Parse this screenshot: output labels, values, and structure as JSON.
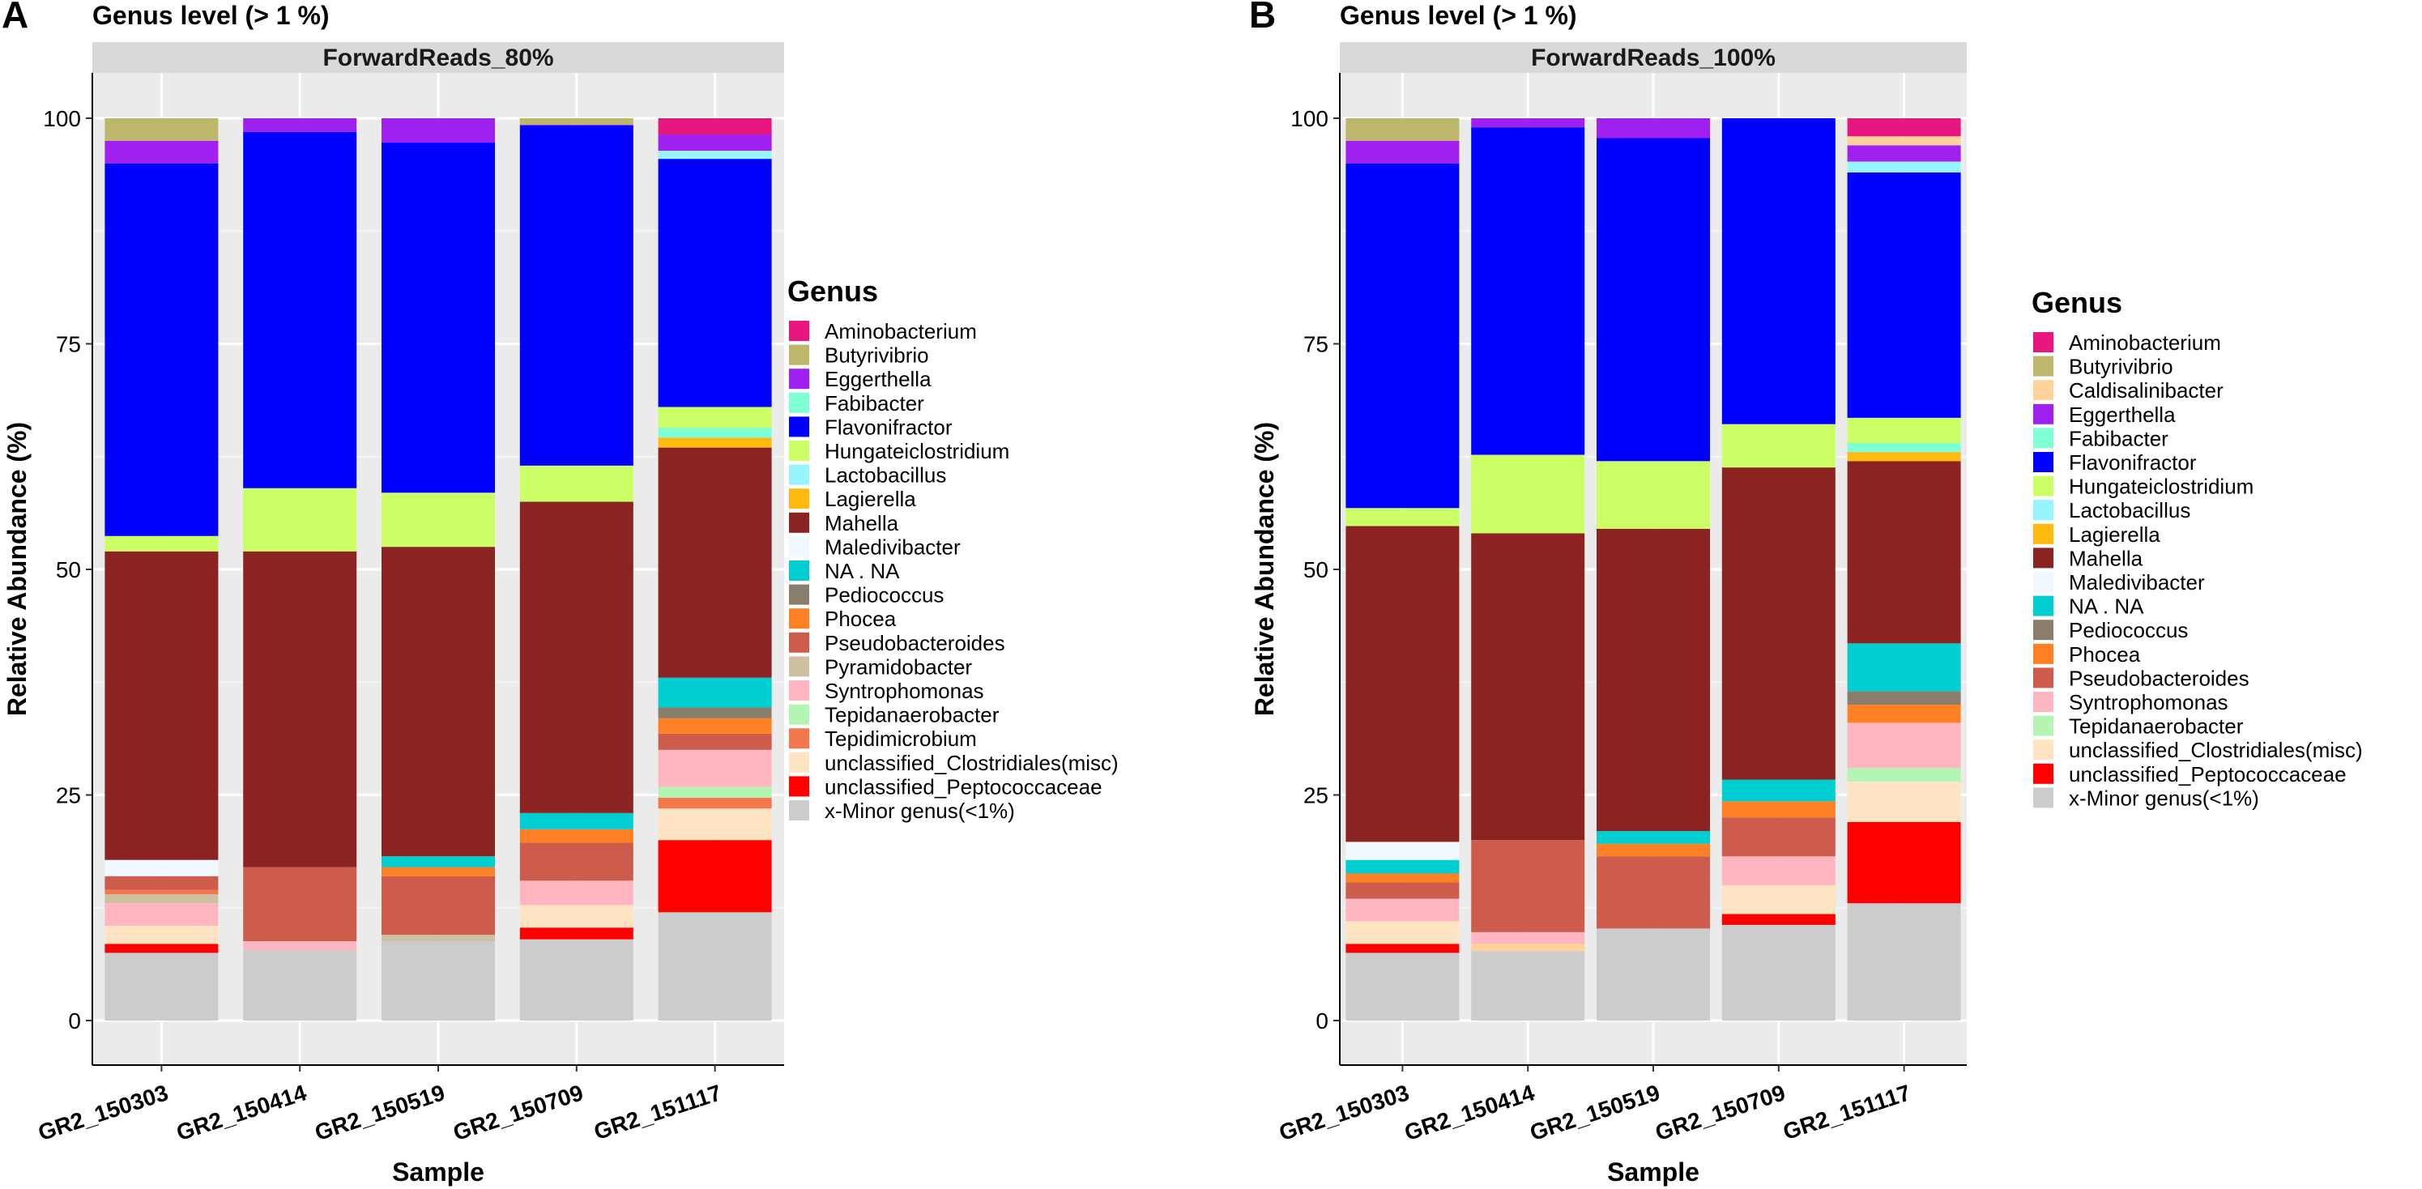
{
  "colors": {
    "Aminobacterium": "#E8177F",
    "Butyrivibrio": "#BDB76B",
    "Caldisalinibacter": "#FFD39B",
    "Eggerthella": "#A020F0",
    "Fabibacter": "#7FFFD4",
    "Flavonifractor": "#0000FF",
    "Hungateiclostridium": "#CCFF66",
    "Lactobacillus": "#98F5FF",
    "Lagierella": "#FFB90F",
    "Mahella": "#8B2323",
    "Maledivibacter": "#F0F8FF",
    "NA . NA": "#00CED1",
    "Pediococcus": "#8B7D6B",
    "Phocea": "#FF7F24",
    "Pseudobacteroides": "#CD5C4C",
    "Pyramidobacter": "#CDC0A0",
    "Syntrophomonas": "#FFB6C1",
    "Tepidanaerobacter": "#B4F5B4",
    "Tepidimicrobium": "#F4784E",
    "unclassified_Clostridiales(misc)": "#FFE4C4",
    "unclassified_Peptococcaceae": "#FF0000",
    "x-Minor genus(<1%)": "#CCCCCC"
  },
  "chart_data": [
    {
      "type": "bar",
      "stacked": true,
      "panel_letter": "A",
      "title": "Genus level (> 1 %)",
      "facet_label": "ForwardReads_80%",
      "xlabel": "Sample",
      "ylabel": "Relative Abundance (%)",
      "ylim": [
        0,
        100
      ],
      "yticks": [
        0,
        25,
        50,
        75,
        100
      ],
      "grid": true,
      "legend_title": "Genus",
      "legend_position": "right",
      "legend": [
        "Aminobacterium",
        "Butyrivibrio",
        "Eggerthella",
        "Fabibacter",
        "Flavonifractor",
        "Hungateiclostridium",
        "Lactobacillus",
        "Lagierella",
        "Mahella",
        "Maledivibacter",
        "NA . NA",
        "Pediococcus",
        "Phocea",
        "Pseudobacteroides",
        "Pyramidobacter",
        "Syntrophomonas",
        "Tepidanaerobacter",
        "Tepidimicrobium",
        "unclassified_Clostridiales(misc)",
        "unclassified_Peptococcaceae",
        "x-Minor genus(<1%)"
      ],
      "categories": [
        "GR2_150303",
        "GR2_150414",
        "GR2_150519",
        "GR2_150709",
        "GR2_151117"
      ],
      "stacks": [
        [
          {
            "genus": "x-Minor genus(<1%)",
            "value": 7.5
          },
          {
            "genus": "unclassified_Peptococcaceae",
            "value": 1
          },
          {
            "genus": "unclassified_Clostridiales(misc)",
            "value": 2
          },
          {
            "genus": "Syntrophomonas",
            "value": 2.5
          },
          {
            "genus": "Pyramidobacter",
            "value": 1
          },
          {
            "genus": "Tepidimicrobium",
            "value": 0.5
          },
          {
            "genus": "Pseudobacteroides",
            "value": 1.5
          },
          {
            "genus": "Maledivibacter",
            "value": 1.8
          },
          {
            "genus": "Mahella",
            "value": 34.2
          },
          {
            "genus": "Hungateiclostridium",
            "value": 1.7
          },
          {
            "genus": "Flavonifractor",
            "value": 41.3
          },
          {
            "genus": "Eggerthella",
            "value": 2.5
          },
          {
            "genus": "Butyrivibrio",
            "value": 2.5
          }
        ],
        [
          {
            "genus": "x-Minor genus(<1%)",
            "value": 7.8
          },
          {
            "genus": "Syntrophomonas",
            "value": 1
          },
          {
            "genus": "Pseudobacteroides",
            "value": 8.2
          },
          {
            "genus": "Mahella",
            "value": 35
          },
          {
            "genus": "Hungateiclostridium",
            "value": 7
          },
          {
            "genus": "Flavonifractor",
            "value": 39.5
          },
          {
            "genus": "Eggerthella",
            "value": 1.5
          }
        ],
        [
          {
            "genus": "x-Minor genus(<1%)",
            "value": 8.8
          },
          {
            "genus": "Pyramidobacter",
            "value": 0.7
          },
          {
            "genus": "Pseudobacteroides",
            "value": 6.5
          },
          {
            "genus": "Phocea",
            "value": 1
          },
          {
            "genus": "NA . NA",
            "value": 1.2
          },
          {
            "genus": "Mahella",
            "value": 34.3
          },
          {
            "genus": "Hungateiclostridium",
            "value": 6
          },
          {
            "genus": "Flavonifractor",
            "value": 38.8
          },
          {
            "genus": "Eggerthella",
            "value": 2.7
          }
        ],
        [
          {
            "genus": "x-Minor genus(<1%)",
            "value": 9
          },
          {
            "genus": "unclassified_Peptococcaceae",
            "value": 1.3
          },
          {
            "genus": "unclassified_Clostridiales(misc)",
            "value": 2.5
          },
          {
            "genus": "Syntrophomonas",
            "value": 2.7
          },
          {
            "genus": "Pseudobacteroides",
            "value": 4.2
          },
          {
            "genus": "Phocea",
            "value": 1.5
          },
          {
            "genus": "NA . NA",
            "value": 1.8
          },
          {
            "genus": "Mahella",
            "value": 34.5
          },
          {
            "genus": "Hungateiclostridium",
            "value": 4
          },
          {
            "genus": "Flavonifractor",
            "value": 37.7
          },
          {
            "genus": "Eggerthella",
            "value": 0.1
          },
          {
            "genus": "Butyrivibrio",
            "value": 0.7
          }
        ],
        [
          {
            "genus": "x-Minor genus(<1%)",
            "value": 12
          },
          {
            "genus": "unclassified_Peptococcaceae",
            "value": 8
          },
          {
            "genus": "unclassified_Clostridiales(misc)",
            "value": 3.5
          },
          {
            "genus": "Tepidimicrobium",
            "value": 1.2
          },
          {
            "genus": "Tepidanaerobacter",
            "value": 1.2
          },
          {
            "genus": "Syntrophomonas",
            "value": 4.1
          },
          {
            "genus": "Pseudobacteroides",
            "value": 1.8
          },
          {
            "genus": "Phocea",
            "value": 1.7
          },
          {
            "genus": "Pediococcus",
            "value": 1.2
          },
          {
            "genus": "NA . NA",
            "value": 3.3
          },
          {
            "genus": "Mahella",
            "value": 25.5
          },
          {
            "genus": "Lagierella",
            "value": 1.1
          },
          {
            "genus": "Fabibacter",
            "value": 1.1
          },
          {
            "genus": "Hungateiclostridium",
            "value": 2.3
          },
          {
            "genus": "Flavonifractor",
            "value": 27.5
          },
          {
            "genus": "Lactobacillus",
            "value": 0.9
          },
          {
            "genus": "Eggerthella",
            "value": 1.8
          },
          {
            "genus": "Aminobacterium",
            "value": 1.8
          }
        ]
      ]
    },
    {
      "type": "bar",
      "stacked": true,
      "panel_letter": "B",
      "title": "Genus level (> 1 %)",
      "facet_label": "ForwardReads_100%",
      "xlabel": "Sample",
      "ylabel": "Relative Abundance (%)",
      "ylim": [
        0,
        100
      ],
      "yticks": [
        0,
        25,
        50,
        75,
        100
      ],
      "grid": true,
      "legend_title": "Genus",
      "legend_position": "right",
      "legend": [
        "Aminobacterium",
        "Butyrivibrio",
        "Caldisalinibacter",
        "Eggerthella",
        "Fabibacter",
        "Flavonifractor",
        "Hungateiclostridium",
        "Lactobacillus",
        "Lagierella",
        "Mahella",
        "Maledivibacter",
        "NA . NA",
        "Pediococcus",
        "Phocea",
        "Pseudobacteroides",
        "Syntrophomonas",
        "Tepidanaerobacter",
        "unclassified_Clostridiales(misc)",
        "unclassified_Peptococcaceae",
        "x-Minor genus(<1%)"
      ],
      "categories": [
        "GR2_150303",
        "GR2_150414",
        "GR2_150519",
        "GR2_150709",
        "GR2_151117"
      ],
      "stacks": [
        [
          {
            "genus": "x-Minor genus(<1%)",
            "value": 7.5
          },
          {
            "genus": "unclassified_Peptococcaceae",
            "value": 1
          },
          {
            "genus": "unclassified_Clostridiales(misc)",
            "value": 2.5
          },
          {
            "genus": "Syntrophomonas",
            "value": 2.5
          },
          {
            "genus": "Pseudobacteroides",
            "value": 1.8
          },
          {
            "genus": "Phocea",
            "value": 1
          },
          {
            "genus": "NA . NA",
            "value": 1.5
          },
          {
            "genus": "Maledivibacter",
            "value": 2
          },
          {
            "genus": "Mahella",
            "value": 35
          },
          {
            "genus": "Hungateiclostridium",
            "value": 2
          },
          {
            "genus": "Flavonifractor",
            "value": 38.2
          },
          {
            "genus": "Eggerthella",
            "value": 2.5
          },
          {
            "genus": "Butyrivibrio",
            "value": 2.5
          }
        ],
        [
          {
            "genus": "x-Minor genus(<1%)",
            "value": 7.7
          },
          {
            "genus": "Caldisalinibacter",
            "value": 0.8
          },
          {
            "genus": "Syntrophomonas",
            "value": 1.3
          },
          {
            "genus": "Pseudobacteroides",
            "value": 10.2
          },
          {
            "genus": "Mahella",
            "value": 34
          },
          {
            "genus": "Hungateiclostridium",
            "value": 8.7
          },
          {
            "genus": "Flavonifractor",
            "value": 36.3
          },
          {
            "genus": "Eggerthella",
            "value": 1
          }
        ],
        [
          {
            "genus": "x-Minor genus(<1%)",
            "value": 10.2
          },
          {
            "genus": "Pseudobacteroides",
            "value": 8
          },
          {
            "genus": "Phocea",
            "value": 1.4
          },
          {
            "genus": "NA . NA",
            "value": 1.4
          },
          {
            "genus": "Mahella",
            "value": 33.5
          },
          {
            "genus": "Hungateiclostridium",
            "value": 7.5
          },
          {
            "genus": "Flavonifractor",
            "value": 35.8
          },
          {
            "genus": "Eggerthella",
            "value": 2.2
          }
        ],
        [
          {
            "genus": "x-Minor genus(<1%)",
            "value": 10.6
          },
          {
            "genus": "unclassified_Peptococcaceae",
            "value": 1.2
          },
          {
            "genus": "unclassified_Clostridiales(misc)",
            "value": 3.2
          },
          {
            "genus": "Syntrophomonas",
            "value": 3.2
          },
          {
            "genus": "Pseudobacteroides",
            "value": 4.3
          },
          {
            "genus": "Phocea",
            "value": 1.8
          },
          {
            "genus": "NA . NA",
            "value": 2.4
          },
          {
            "genus": "Mahella",
            "value": 34.6
          },
          {
            "genus": "Hungateiclostridium",
            "value": 4.8
          },
          {
            "genus": "Flavonifractor",
            "value": 33.9
          }
        ],
        [
          {
            "genus": "x-Minor genus(<1%)",
            "value": 13
          },
          {
            "genus": "unclassified_Peptococcaceae",
            "value": 9
          },
          {
            "genus": "unclassified_Clostridiales(misc)",
            "value": 4.5
          },
          {
            "genus": "Tepidanaerobacter",
            "value": 1.5
          },
          {
            "genus": "Syntrophomonas",
            "value": 5
          },
          {
            "genus": "Phocea",
            "value": 2
          },
          {
            "genus": "Pediococcus",
            "value": 1.5
          },
          {
            "genus": "NA . NA",
            "value": 5.3
          },
          {
            "genus": "Mahella",
            "value": 20.2
          },
          {
            "genus": "Lagierella",
            "value": 1
          },
          {
            "genus": "Fabibacter",
            "value": 1
          },
          {
            "genus": "Hungateiclostridium",
            "value": 2.8
          },
          {
            "genus": "Flavonifractor",
            "value": 27.2
          },
          {
            "genus": "Lactobacillus",
            "value": 1.2
          },
          {
            "genus": "Eggerthella",
            "value": 1.8
          },
          {
            "genus": "Caldisalinibacter",
            "value": 1
          },
          {
            "genus": "Aminobacterium",
            "value": 2
          }
        ]
      ]
    }
  ]
}
